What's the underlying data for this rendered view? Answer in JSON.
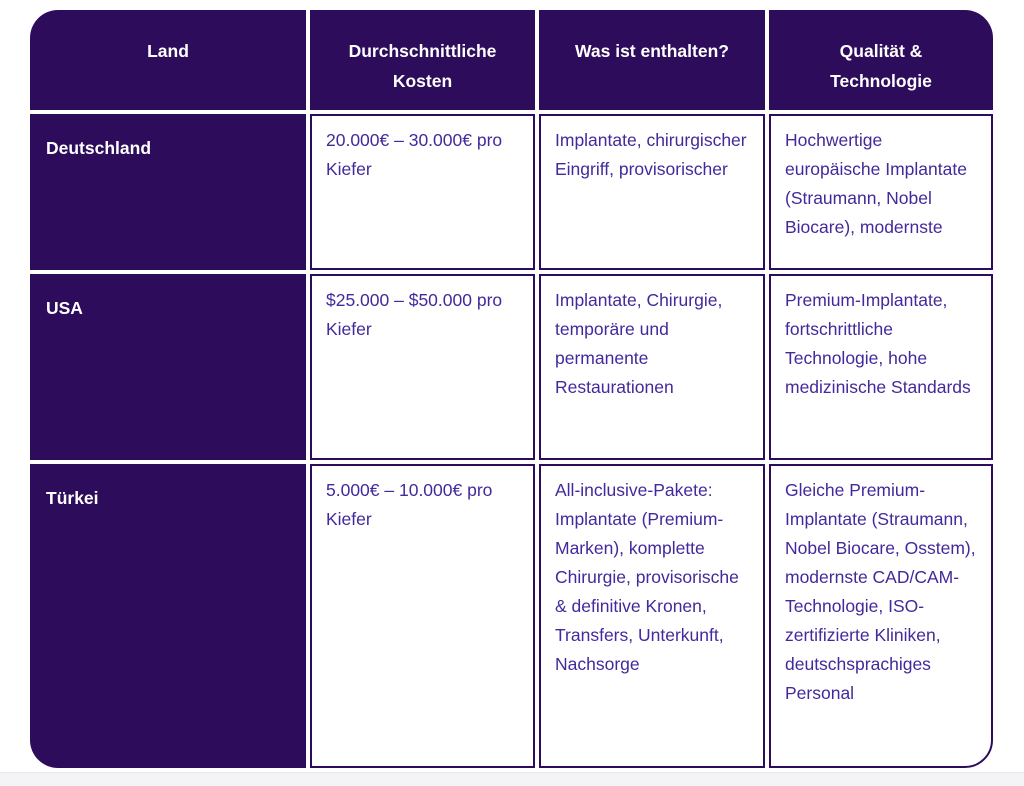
{
  "table": {
    "columns": [
      "Land",
      "Durchschnittliche Kosten",
      "Was ist enthalten?",
      "Qualität & Technologie"
    ],
    "rows": [
      {
        "cells": [
          "Deutschland",
          "20.000€ – 30.000€ pro Kiefer",
          "Implantate, chirurgischer Eingriff, provisorischer",
          "Hochwertige europäische Implantate (Straumann, Nobel Biocare), modernste"
        ]
      },
      {
        "cells": [
          "USA",
          "$25.000 – $50.000 pro Kiefer",
          "Implantate, Chirurgie, temporäre und permanente Restaurationen",
          "Premium-Implantate, fortschrittliche Technologie, hohe medizinische Standards"
        ]
      },
      {
        "cells": [
          "Türkei",
          "5.000€ – 10.000€ pro Kiefer",
          "All-inclusive-Pakete: Implantate (Premium-Marken), komplette Chirurgie, provisorische & definitive Kronen, Transfers, Unterkunft, Nachsorge",
          "Gleiche Premium-Implantate (Straumann, Nobel Biocare, Osstem), modernste CAD/CAM-Technologie, ISO-zertifizierte Kliniken, deutschsprachiges Personal"
        ]
      }
    ]
  },
  "colors": {
    "table_purple": "#2e0c5c",
    "cell_text_purple": "#43299b",
    "page_bottom_strip": "#f4f4f6"
  }
}
